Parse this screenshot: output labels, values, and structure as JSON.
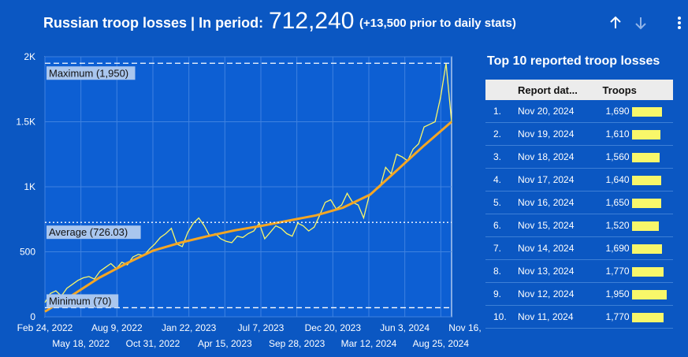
{
  "header": {
    "title": "Russian troop losses | In period:",
    "total": "712,240",
    "note": "(+13,500 prior to daily stats)",
    "sort_asc_icon": "arrow-up-icon",
    "sort_desc_icon": "arrow-down-icon",
    "menu_icon": "more-vert-icon"
  },
  "colors": {
    "background": "#0b57c2",
    "plot_background": "#0d5fd3",
    "series": "#f8f76a",
    "trend": "#f5a623",
    "reference": "#ffffff"
  },
  "chart_data": {
    "type": "line",
    "x_start": "Feb 24, 2022",
    "x_end": "Nov 16, 2024",
    "ylim": [
      0,
      2000
    ],
    "y_ticks": [
      "0",
      "500",
      "1K",
      "1.5K",
      "2K"
    ],
    "x_ticks_top": [
      "Feb 24, 2022",
      "Aug 9, 2022",
      "Jan 22, 2023",
      "Jul 7, 2023",
      "Dec 20, 2023",
      "Jun 3, 2024",
      "Nov 16, 2024"
    ],
    "x_ticks_bottom": [
      "May 18, 2022",
      "Oct 31, 2022",
      "Apr 15, 2023",
      "Sep 28, 2023",
      "Mar 12, 2024",
      "Aug 25, 2024"
    ],
    "reference_lines": [
      {
        "label": "Maximum (1,950)",
        "value": 1950
      },
      {
        "label": "Average (726.03)",
        "value": 726.03
      },
      {
        "label": "Minimum (70)",
        "value": 70
      }
    ],
    "series": [
      {
        "values": [
          110,
          180,
          200,
          160,
          220,
          250,
          280,
          300,
          310,
          290,
          350,
          380,
          410,
          370,
          420,
          400,
          460,
          480,
          470,
          520,
          560,
          610,
          640,
          680,
          560,
          540,
          650,
          720,
          760,
          700,
          620,
          640,
          600,
          580,
          570,
          620,
          610,
          640,
          660,
          720,
          600,
          650,
          700,
          680,
          640,
          620,
          720,
          700,
          660,
          690,
          780,
          880,
          900,
          830,
          860,
          950,
          880,
          860,
          760,
          930,
          970,
          1000,
          1150,
          1100,
          1250,
          1230,
          1200,
          1290,
          1330,
          1460,
          1480,
          1500,
          1690,
          1950,
          1500
        ]
      }
    ],
    "trend": {
      "type": "polynomial",
      "values": [
        40,
        165,
        300,
        410,
        510,
        570,
        620,
        665,
        700,
        740,
        780,
        840,
        940,
        1130,
        1320,
        1500
      ]
    }
  },
  "top10": {
    "title": "Top 10 reported troop losses",
    "columns": [
      "Report dat...",
      "Troops"
    ],
    "max_value": 1950,
    "rows": [
      {
        "rank": "1.",
        "date": "Nov 20, 2024",
        "value_text": "1,690",
        "value": 1690
      },
      {
        "rank": "2.",
        "date": "Nov 19, 2024",
        "value_text": "1,610",
        "value": 1610
      },
      {
        "rank": "3.",
        "date": "Nov 18, 2024",
        "value_text": "1,560",
        "value": 1560
      },
      {
        "rank": "4.",
        "date": "Nov 17, 2024",
        "value_text": "1,640",
        "value": 1640
      },
      {
        "rank": "5.",
        "date": "Nov 16, 2024",
        "value_text": "1,650",
        "value": 1650
      },
      {
        "rank": "6.",
        "date": "Nov 15, 2024",
        "value_text": "1,520",
        "value": 1520
      },
      {
        "rank": "7.",
        "date": "Nov 14, 2024",
        "value_text": "1,690",
        "value": 1690
      },
      {
        "rank": "8.",
        "date": "Nov 13, 2024",
        "value_text": "1,770",
        "value": 1770
      },
      {
        "rank": "9.",
        "date": "Nov 12, 2024",
        "value_text": "1,950",
        "value": 1950
      },
      {
        "rank": "10.",
        "date": "Nov 11, 2024",
        "value_text": "1,770",
        "value": 1770
      }
    ]
  }
}
